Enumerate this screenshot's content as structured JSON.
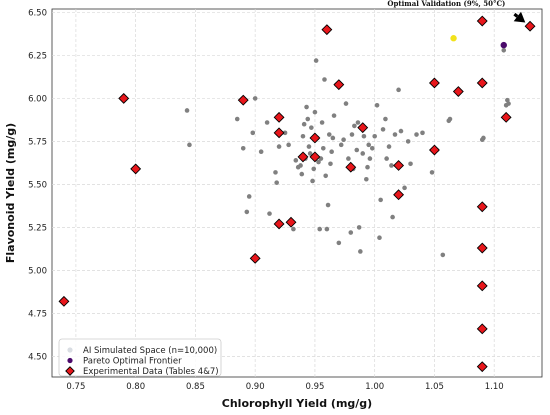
{
  "chart_data": {
    "type": "scatter",
    "xlabel": "Chlorophyll Yield (mg/g)",
    "ylabel": "Flavonoid Yield (mg/g)",
    "xlim": [
      0.73,
      1.14
    ],
    "ylim": [
      4.38,
      6.52
    ],
    "x_ticks": [
      "0.75",
      "0.80",
      "0.85",
      "0.90",
      "0.95",
      "1.00",
      "1.05",
      "1.10"
    ],
    "y_ticks": [
      "4.50",
      "4.75",
      "5.00",
      "5.25",
      "5.50",
      "5.75",
      "6.00",
      "6.25",
      "6.50"
    ],
    "grid": true,
    "legend_position": "bottom-left",
    "annotation": {
      "text": "Optimal Validation (9%, 50°C)",
      "point": [
        1.13,
        6.42
      ],
      "text_at": [
        1.06,
        6.49
      ]
    },
    "series": [
      {
        "name": "AI Simulated Space (n=10,000)",
        "marker": "circle",
        "color": "#808080",
        "points": [
          [
            0.843,
            5.93
          ],
          [
            0.845,
            5.73
          ],
          [
            0.885,
            5.88
          ],
          [
            0.89,
            5.71
          ],
          [
            0.893,
            5.34
          ],
          [
            0.895,
            5.43
          ],
          [
            0.898,
            5.8
          ],
          [
            0.9,
            6.0
          ],
          [
            0.905,
            5.69
          ],
          [
            0.91,
            5.86
          ],
          [
            0.912,
            5.33
          ],
          [
            0.917,
            5.57
          ],
          [
            0.918,
            5.51
          ],
          [
            0.92,
            5.72
          ],
          [
            0.925,
            5.8
          ],
          [
            0.928,
            5.73
          ],
          [
            0.93,
            5.27
          ],
          [
            0.932,
            5.24
          ],
          [
            0.934,
            5.64
          ],
          [
            0.936,
            5.6
          ],
          [
            0.938,
            5.61
          ],
          [
            0.939,
            5.56
          ],
          [
            0.94,
            5.78
          ],
          [
            0.941,
            5.85
          ],
          [
            0.942,
            5.65
          ],
          [
            0.943,
            5.95
          ],
          [
            0.944,
            5.88
          ],
          [
            0.945,
            5.72
          ],
          [
            0.946,
            5.68
          ],
          [
            0.947,
            5.83
          ],
          [
            0.948,
            5.52
          ],
          [
            0.949,
            5.59
          ],
          [
            0.95,
            5.92
          ],
          [
            0.951,
            6.22
          ],
          [
            0.952,
            5.77
          ],
          [
            0.953,
            5.63
          ],
          [
            0.954,
            5.24
          ],
          [
            0.955,
            5.65
          ],
          [
            0.956,
            5.86
          ],
          [
            0.957,
            5.71
          ],
          [
            0.958,
            6.11
          ],
          [
            0.959,
            5.55
          ],
          [
            0.96,
            5.24
          ],
          [
            0.961,
            5.38
          ],
          [
            0.962,
            5.79
          ],
          [
            0.963,
            5.62
          ],
          [
            0.964,
            5.69
          ],
          [
            0.965,
            5.77
          ],
          [
            0.966,
            5.9
          ],
          [
            0.968,
            6.08
          ],
          [
            0.97,
            5.16
          ],
          [
            0.972,
            5.73
          ],
          [
            0.974,
            5.76
          ],
          [
            0.976,
            5.97
          ],
          [
            0.978,
            5.65
          ],
          [
            0.98,
            5.22
          ],
          [
            0.981,
            5.79
          ],
          [
            0.982,
            5.59
          ],
          [
            0.983,
            5.84
          ],
          [
            0.985,
            5.7
          ],
          [
            0.986,
            5.86
          ],
          [
            0.987,
            5.25
          ],
          [
            0.988,
            5.11
          ],
          [
            0.99,
            5.68
          ],
          [
            0.991,
            5.78
          ],
          [
            0.993,
            5.53
          ],
          [
            0.994,
            5.6
          ],
          [
            0.995,
            5.73
          ],
          [
            0.996,
            5.65
          ],
          [
            0.998,
            5.71
          ],
          [
            1.0,
            5.78
          ],
          [
            1.002,
            5.96
          ],
          [
            1.004,
            5.19
          ],
          [
            1.005,
            5.41
          ],
          [
            1.007,
            5.82
          ],
          [
            1.009,
            5.88
          ],
          [
            1.01,
            5.65
          ],
          [
            1.012,
            5.72
          ],
          [
            1.014,
            5.61
          ],
          [
            1.015,
            5.31
          ],
          [
            1.017,
            5.79
          ],
          [
            1.02,
            6.05
          ],
          [
            1.022,
            5.81
          ],
          [
            1.025,
            5.48
          ],
          [
            1.028,
            5.75
          ],
          [
            1.03,
            5.62
          ],
          [
            1.035,
            5.79
          ],
          [
            1.04,
            5.8
          ],
          [
            1.048,
            5.57
          ],
          [
            1.052,
            5.7
          ],
          [
            1.057,
            5.09
          ],
          [
            1.062,
            5.87
          ],
          [
            1.063,
            5.88
          ],
          [
            1.09,
            5.76
          ],
          [
            1.091,
            5.77
          ],
          [
            1.108,
            6.28
          ],
          [
            1.11,
            5.96
          ],
          [
            1.111,
            5.99
          ],
          [
            1.112,
            5.97
          ]
        ]
      },
      {
        "name": "Pareto Optimal Frontier",
        "marker": "circle",
        "color": "#4b0a6b",
        "points": [
          [
            1.108,
            6.31
          ]
        ]
      },
      {
        "name": "Pareto Optimal Frontier",
        "marker": "circle",
        "color": "#f2e21b",
        "points": [
          [
            1.066,
            6.35
          ]
        ]
      },
      {
        "name": "Experimental Data (Tables 4&7)",
        "marker": "diamond",
        "color": "#e8161b",
        "points": [
          [
            0.74,
            4.82
          ],
          [
            0.79,
            6.0
          ],
          [
            0.8,
            5.59
          ],
          [
            0.89,
            5.99
          ],
          [
            0.9,
            5.07
          ],
          [
            0.92,
            5.89
          ],
          [
            0.92,
            5.8
          ],
          [
            0.92,
            5.27
          ],
          [
            0.93,
            5.28
          ],
          [
            0.94,
            5.66
          ],
          [
            0.95,
            5.77
          ],
          [
            0.95,
            5.66
          ],
          [
            0.96,
            6.4
          ],
          [
            0.97,
            6.08
          ],
          [
            0.98,
            5.6
          ],
          [
            0.99,
            5.83
          ],
          [
            1.02,
            5.61
          ],
          [
            1.02,
            5.44
          ],
          [
            1.05,
            6.09
          ],
          [
            1.05,
            5.7
          ],
          [
            1.07,
            6.04
          ],
          [
            1.09,
            6.45
          ],
          [
            1.09,
            6.09
          ],
          [
            1.09,
            5.37
          ],
          [
            1.09,
            5.13
          ],
          [
            1.09,
            4.91
          ],
          [
            1.09,
            4.66
          ],
          [
            1.09,
            4.44
          ],
          [
            1.11,
            5.89
          ],
          [
            1.13,
            6.42
          ]
        ]
      }
    ],
    "legend": [
      {
        "label": "AI Simulated Space (n=10,000)",
        "marker": "circle",
        "color": "#d9dde3"
      },
      {
        "label": "Pareto Optimal Frontier",
        "marker": "circle",
        "color": "#4b0a6b"
      },
      {
        "label": "Experimental Data (Tables 4&7)",
        "marker": "diamond",
        "color": "#e8161b"
      }
    ]
  }
}
